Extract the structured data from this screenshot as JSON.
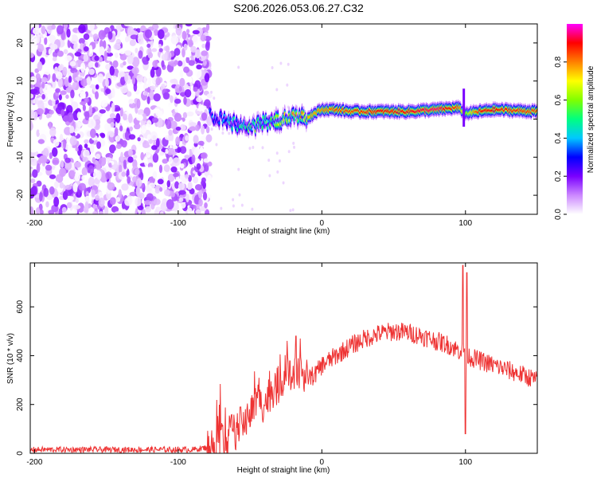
{
  "title": "S206.2026.053.06.27.C32",
  "chart_data": [
    {
      "type": "heatmap",
      "title": "S206.2026.053.06.27.C32",
      "xlabel": "Height of straight line (km)",
      "ylabel": "Frequency (Hz)",
      "xlim": [
        -203,
        150
      ],
      "ylim": [
        -25,
        25
      ],
      "xticks": [
        -200,
        -100,
        0,
        100
      ],
      "yticks": [
        -20,
        -10,
        0,
        10,
        20
      ],
      "colorbar": {
        "label": "Normalized spectral amplitude",
        "range": [
          0.0,
          1.0
        ],
        "ticks": [
          0.0,
          0.2,
          0.4,
          0.6,
          0.8
        ],
        "tick_labels": [
          "0.0",
          "0.2",
          "0.4",
          "0.6",
          "0.8"
        ],
        "colormap": [
          "#ffffff",
          "#cc88ff",
          "#7a00ff",
          "#0000ff",
          "#00c8ff",
          "#00ff80",
          "#80ff00",
          "#ffff00",
          "#ff8000",
          "#ff0000",
          "#ff00ff"
        ]
      },
      "noise_region": {
        "x": [
          -203,
          -78
        ],
        "amplitude_range": [
          0.0,
          0.2
        ]
      },
      "ridge": {
        "description": "narrow band signal near 0-3 Hz",
        "x": [
          -78,
          -70,
          -60,
          -50,
          -40,
          -30,
          -20,
          -10,
          0,
          10,
          20,
          40,
          60,
          80,
          95,
          100,
          110,
          120,
          150
        ],
        "frequency": [
          1.0,
          0.0,
          -1.5,
          -2.0,
          -1.0,
          -0.5,
          0.5,
          0.5,
          2.5,
          2.5,
          2.0,
          2.0,
          2.0,
          2.5,
          3.0,
          1.5,
          2.0,
          2.5,
          2.0
        ],
        "amplitude": [
          0.35,
          0.4,
          0.45,
          0.5,
          0.55,
          0.6,
          0.7,
          0.75,
          0.8,
          0.85,
          0.85,
          0.9,
          0.9,
          0.95,
          0.85,
          0.6,
          0.9,
          0.9,
          0.85
        ]
      }
    },
    {
      "type": "line",
      "title": "",
      "xlabel": "Height of straight line (km)",
      "ylabel": "SNR (10 * v/v)",
      "xlim": [
        -203,
        150
      ],
      "ylim": [
        0,
        780
      ],
      "xticks": [
        -200,
        -100,
        0,
        100
      ],
      "yticks": [
        0,
        200,
        400,
        600
      ],
      "color": "#ee3333",
      "series": [
        {
          "name": "SNR",
          "x": [
            -203,
            -180,
            -150,
            -120,
            -90,
            -78,
            -70,
            -60,
            -50,
            -45,
            -40,
            -35,
            -30,
            -25,
            -20,
            -15,
            -10,
            -5,
            0,
            10,
            20,
            30,
            40,
            50,
            60,
            70,
            80,
            90,
            95,
            98,
            100,
            102,
            105,
            110,
            120,
            130,
            140,
            150
          ],
          "y": [
            15,
            15,
            15,
            15,
            15,
            25,
            60,
            90,
            160,
            220,
            200,
            260,
            280,
            330,
            300,
            320,
            310,
            320,
            360,
            400,
            440,
            470,
            490,
            500,
            495,
            480,
            460,
            440,
            420,
            430,
            420,
            400,
            390,
            380,
            360,
            340,
            320,
            300
          ],
          "spikes": [
            {
              "x": -18,
              "y": 480
            },
            {
              "x": 98,
              "y": 770
            },
            {
              "x": 100,
              "y": 80
            },
            {
              "x": 101,
              "y": 740
            }
          ],
          "noise_amplitude": [
            {
              "x_range": [
                -203,
                -80
              ],
              "amp": 12
            },
            {
              "x_range": [
                -80,
                -10
              ],
              "amp": 80
            },
            {
              "x_range": [
                -10,
                150
              ],
              "amp": 40
            }
          ]
        }
      ]
    }
  ]
}
